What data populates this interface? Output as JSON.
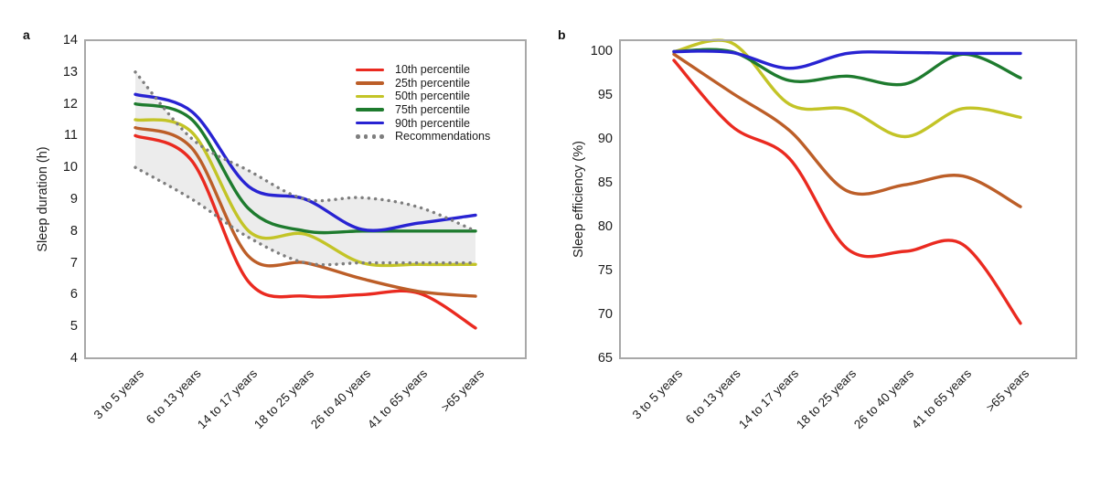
{
  "figure": {
    "panels": [
      {
        "letter": "a"
      },
      {
        "letter": "b"
      }
    ]
  },
  "categories": [
    "3 to 5 years",
    "6 to 13 years",
    "14 to 17 years",
    "18 to 25 years",
    "26 to 40 years",
    "41 to 65 years",
    ">65 years"
  ],
  "colors": {
    "p10": "#ea2a20",
    "p25": "#bc5e28",
    "p50": "#c3c427",
    "p75": "#1e7b2e",
    "p90": "#2823d2",
    "recommendation_dots": "#7e7e7e",
    "recommendation_band": "#eaeaea",
    "frame": "#a8a8a8",
    "text": "#1c1c1c"
  },
  "chart_data": [
    {
      "type": "line",
      "panel": "a",
      "title": "",
      "xlabel": "",
      "ylabel": "Sleep duration (h)",
      "ylim": [
        4,
        14
      ],
      "yticks": [
        14,
        13,
        12,
        11,
        10,
        9,
        8,
        7,
        6,
        5,
        4
      ],
      "grid": false,
      "legend_position": "top-right",
      "categories": [
        "3 to 5 years",
        "6 to 13 years",
        "14 to 17 years",
        "18 to 25 years",
        "26 to 40 years",
        "41 to 65 years",
        ">65 years"
      ],
      "series": [
        {
          "name": "10th percentile",
          "color": "#ea2a20",
          "values": [
            11.0,
            10.2,
            6.4,
            5.95,
            6.0,
            6.05,
            4.95
          ]
        },
        {
          "name": "25th percentile",
          "color": "#bc5e28",
          "values": [
            11.25,
            10.6,
            7.2,
            7.0,
            6.5,
            6.1,
            5.95
          ]
        },
        {
          "name": "50th percentile",
          "color": "#c3c427",
          "values": [
            11.5,
            11.1,
            8.0,
            7.9,
            7.0,
            6.95,
            6.95
          ]
        },
        {
          "name": "75th percentile",
          "color": "#1e7b2e",
          "values": [
            12.0,
            11.5,
            8.7,
            8.0,
            8.0,
            8.0,
            8.0
          ]
        },
        {
          "name": "90th percentile",
          "color": "#2823d2",
          "values": [
            12.3,
            11.75,
            9.4,
            9.0,
            8.05,
            8.25,
            8.5
          ]
        }
      ],
      "recommendations": {
        "label": "Recommendations",
        "dot_color": "#7e7e7e",
        "band_color": "#eaeaea",
        "upper": [
          13.0,
          10.9,
          9.9,
          9.0,
          9.05,
          8.75,
          8.0
        ],
        "lower": [
          10.0,
          9.0,
          7.8,
          7.0,
          7.0,
          7.0,
          7.0
        ]
      }
    },
    {
      "type": "line",
      "panel": "b",
      "title": "",
      "xlabel": "",
      "ylabel": "Sleep efficiency (%)",
      "ylim": [
        65,
        101.3
      ],
      "yticks": [
        100,
        95,
        90,
        85,
        80,
        75,
        70,
        65
      ],
      "grid": false,
      "legend_position": "none",
      "categories": [
        "3 to 5 years",
        "6 to 13 years",
        "14 to 17 years",
        "18 to 25 years",
        "26 to 40 years",
        "41 to 65 years",
        ">65 years"
      ],
      "series": [
        {
          "name": "10th percentile",
          "color": "#ea2a20",
          "values": [
            99.0,
            91.5,
            87.8,
            77.5,
            77.2,
            78.0,
            69.0
          ]
        },
        {
          "name": "25th percentile",
          "color": "#bc5e28",
          "values": [
            99.7,
            95.3,
            91.0,
            84.1,
            84.8,
            85.8,
            82.3
          ]
        },
        {
          "name": "50th percentile",
          "color": "#c3c427",
          "values": [
            100.0,
            101.0,
            94.0,
            93.4,
            90.3,
            93.5,
            92.5
          ]
        },
        {
          "name": "75th percentile",
          "color": "#1e7b2e",
          "values": [
            100.0,
            100.0,
            96.7,
            97.2,
            96.3,
            99.7,
            97.0
          ]
        },
        {
          "name": "90th percentile",
          "color": "#2823d2",
          "values": [
            100.0,
            99.9,
            98.1,
            99.8,
            99.9,
            99.8,
            99.8
          ]
        }
      ]
    }
  ]
}
